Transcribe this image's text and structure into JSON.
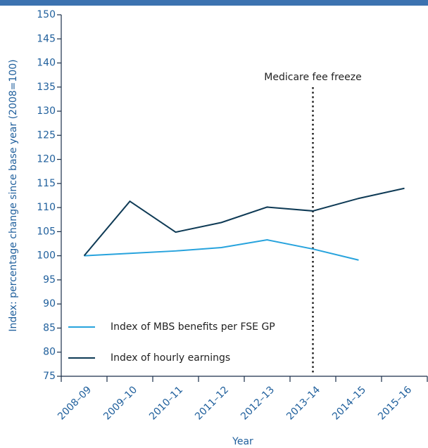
{
  "chart_data": {
    "type": "line",
    "y_label": "Index: percentage change since base year (2008=100)",
    "x_label": "Year",
    "categories": [
      "2008–09",
      "2009–10",
      "2010–11",
      "2011–12",
      "2012–13",
      "2013–14",
      "2014–15",
      "2015–16"
    ],
    "series": [
      {
        "name": "Index of MBS benefits per FSE GP",
        "color": "#27a3dd",
        "values": [
          100,
          100.5,
          101,
          101.7,
          103.3,
          101.4,
          99.1,
          null
        ]
      },
      {
        "name": "Index of hourly earnings",
        "color": "#0e3a55",
        "values": [
          100,
          111.3,
          104.9,
          106.9,
          110.1,
          109.3,
          111.9,
          114.0
        ]
      }
    ],
    "ylim": [
      75,
      150
    ],
    "yticks": [
      75,
      80,
      85,
      90,
      95,
      100,
      105,
      110,
      115,
      120,
      125,
      130,
      135,
      140,
      145,
      150
    ],
    "annotation": {
      "text": "Medicare fee freeze",
      "x": "2013–14"
    },
    "legend": "lower left"
  }
}
